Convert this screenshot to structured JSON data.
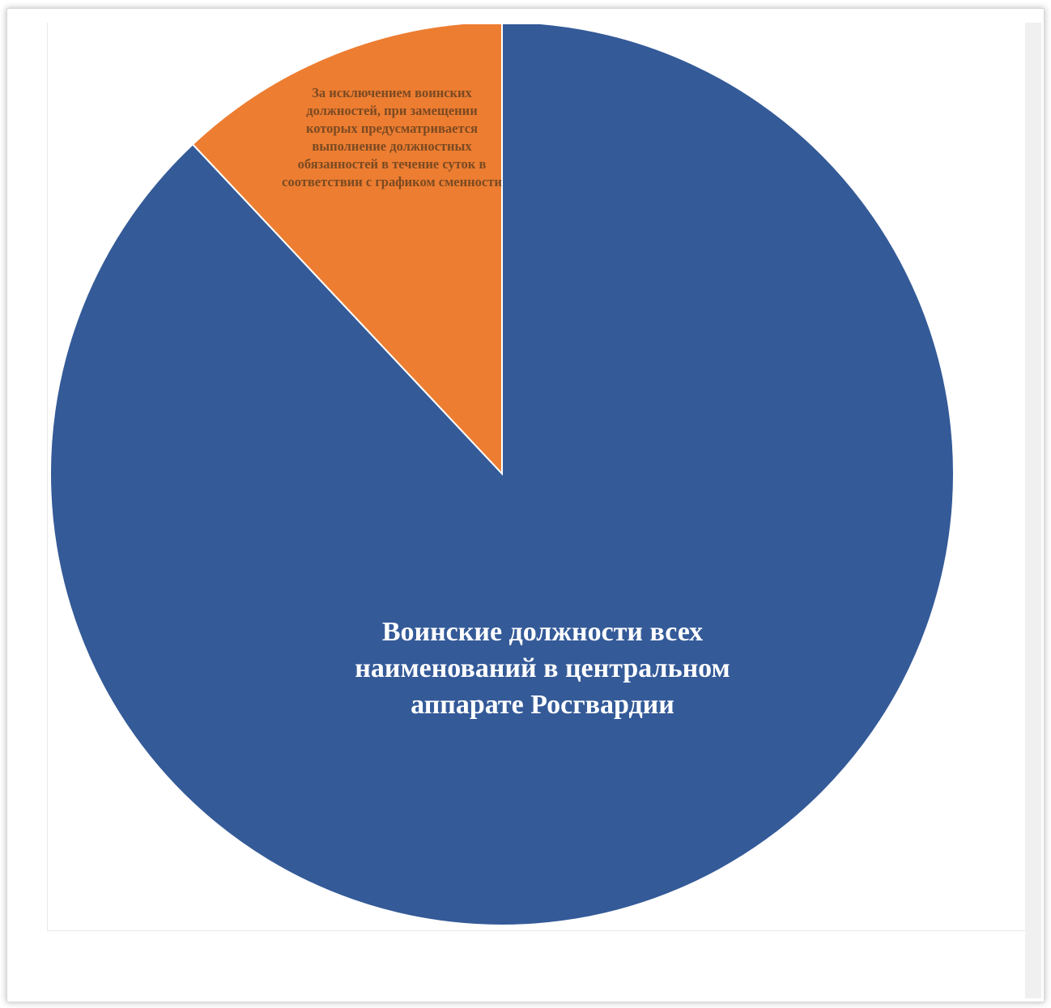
{
  "chart_data": {
    "type": "pie",
    "slices": [
      {
        "label": "Воинские должности всех наименований в центральном аппарате Росгвардии",
        "value": 88,
        "color": "#345a98"
      },
      {
        "label": "За исключением воинских должностей, при замещении которых предусматривается выполнение должностных обязанностей в течение суток в соответствии с графиком сменности",
        "value": 12,
        "color": "#ed7d31"
      }
    ],
    "start_angle_deg": 0,
    "direction": "clockwise"
  }
}
